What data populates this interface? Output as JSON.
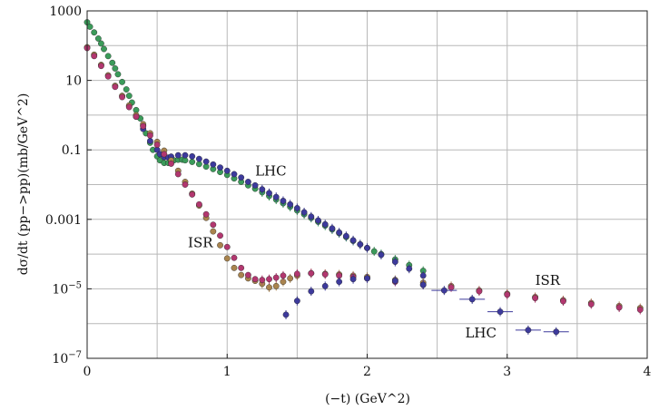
{
  "chart_data": {
    "type": "scatter",
    "title": "",
    "xlabel": "(−t)  (GeV^2)",
    "ylabel": "dσ/dt (pp−>pp)(mb/GeV^2)",
    "xlim": [
      0,
      4
    ],
    "ylim": [
      1e-07,
      1000
    ],
    "yscale": "log",
    "grid": true,
    "x_ticks": [
      {
        "value": 0,
        "label": "0"
      },
      {
        "value": 1,
        "label": "1"
      },
      {
        "value": 2,
        "label": "2"
      },
      {
        "value": 3,
        "label": "3"
      },
      {
        "value": 4,
        "label": "4"
      }
    ],
    "x_gridlines": [
      0.5,
      1,
      1.5,
      2,
      2.5,
      3,
      3.5
    ],
    "y_ticks": [
      {
        "value": 1e-07,
        "label": "10",
        "exp": "−7"
      },
      {
        "value": 1e-05,
        "label": "10",
        "exp": "−5"
      },
      {
        "value": 0.001,
        "label": "0.001"
      },
      {
        "value": 0.1,
        "label": "0.1"
      },
      {
        "value": 10,
        "label": "10"
      },
      {
        "value": 1000,
        "label": "1000"
      }
    ],
    "y_gridlines": [
      1e-07,
      1e-06,
      1e-05,
      0.0001,
      0.001,
      0.01,
      0.1,
      1,
      10,
      100,
      1000
    ],
    "annotations": [
      {
        "text": "LHC",
        "x": 1.2,
        "y": 0.018
      },
      {
        "text": "ISR",
        "x": 0.72,
        "y": 0.00016
      },
      {
        "text": "ISR",
        "x": 3.2,
        "y": 1.3e-05
      },
      {
        "text": "LHC",
        "x": 2.7,
        "y": 4e-07
      }
    ],
    "series": [
      {
        "color": "#3b9b5a",
        "x": [
          0.0,
          0.02,
          0.05,
          0.08,
          0.1,
          0.12,
          0.15,
          0.18,
          0.2,
          0.22,
          0.25,
          0.28,
          0.3,
          0.32,
          0.35,
          0.38,
          0.4,
          0.42,
          0.45,
          0.47,
          0.5,
          0.52,
          0.55,
          0.58,
          0.6,
          0.62,
          0.65,
          0.68,
          0.7,
          0.75,
          0.8,
          0.85,
          0.9,
          0.95,
          1.0,
          1.05,
          1.1,
          1.15,
          1.2,
          1.25,
          1.3,
          1.35,
          1.4,
          1.45,
          1.5,
          1.55,
          1.6,
          1.65,
          1.7,
          1.75,
          1.8,
          1.85,
          1.9,
          1.95,
          2.0,
          2.05,
          2.1,
          2.2,
          2.3,
          2.4
        ],
        "y": [
          470,
          350,
          240,
          160,
          115,
          80,
          50,
          32,
          22,
          15,
          9,
          5.5,
          3.6,
          2.3,
          1.4,
          0.8,
          0.5,
          0.3,
          0.16,
          0.1,
          0.065,
          0.05,
          0.042,
          0.042,
          0.046,
          0.05,
          0.052,
          0.052,
          0.05,
          0.045,
          0.039,
          0.033,
          0.028,
          0.023,
          0.019,
          0.015,
          0.012,
          0.0095,
          0.0076,
          0.006,
          0.0047,
          0.0037,
          0.0029,
          0.0023,
          0.0018,
          0.0014,
          0.0011,
          0.00085,
          0.00066,
          0.00051,
          0.0004,
          0.00031,
          0.00024,
          0.00019,
          0.00015,
          0.00012,
          0.0001,
          7e-05,
          4.8e-05,
          3.3e-05
        ]
      },
      {
        "color": "#3d3a9c",
        "x": [
          0.3,
          0.35,
          0.4,
          0.45,
          0.5,
          0.52,
          0.55,
          0.58,
          0.6,
          0.65,
          0.7,
          0.75,
          0.8,
          0.85,
          0.9,
          0.95,
          1.0,
          1.05,
          1.1,
          1.15,
          1.2,
          1.25,
          1.3,
          1.35,
          1.4,
          1.45,
          1.5,
          1.55,
          1.6,
          1.65,
          1.7,
          1.75,
          1.8,
          1.85,
          1.9,
          1.95,
          2.0,
          2.1,
          2.2,
          2.3,
          2.4
        ],
        "y": [
          1.8,
          0.9,
          0.4,
          0.18,
          0.1,
          0.075,
          0.062,
          0.06,
          0.064,
          0.07,
          0.07,
          0.065,
          0.055,
          0.046,
          0.038,
          0.031,
          0.025,
          0.02,
          0.016,
          0.012,
          0.0095,
          0.0073,
          0.0057,
          0.0044,
          0.0034,
          0.0027,
          0.0021,
          0.0016,
          0.0012,
          0.00093,
          0.00072,
          0.00055,
          0.00042,
          0.00033,
          0.00025,
          0.00019,
          0.00015,
          9.5e-05,
          6e-05,
          3.8e-05,
          2.4e-05
        ]
      },
      {
        "color": "#a9844e",
        "x": [
          0.0,
          0.05,
          0.1,
          0.15,
          0.2,
          0.25,
          0.3,
          0.35,
          0.4,
          0.45,
          0.5,
          0.55,
          0.6,
          0.65,
          0.7,
          0.75,
          0.8,
          0.85,
          0.9,
          0.95,
          1.0,
          1.05,
          1.1,
          1.15,
          1.2,
          1.25,
          1.3,
          1.35,
          1.4,
          1.45,
          1.5,
          1.6,
          1.7,
          1.8,
          1.9,
          2.0,
          2.2,
          2.4,
          2.6,
          2.8,
          3.0,
          3.2,
          3.4,
          3.6,
          3.8,
          3.95
        ],
        "y": [
          90,
          55,
          28,
          14,
          7,
          3.6,
          1.9,
          1.0,
          0.55,
          0.3,
          0.17,
          0.095,
          0.05,
          0.025,
          0.012,
          0.0055,
          0.0025,
          0.0011,
          0.00045,
          0.00018,
          7.5e-05,
          4e-05,
          2.5e-05,
          2e-05,
          1.7e-05,
          1.4e-05,
          1.1e-05,
          1.2e-05,
          1.6e-05,
          2e-05,
          2.4e-05,
          2.8e-05,
          2.7e-05,
          2.6e-05,
          2.4e-05,
          2.2e-05,
          1.8e-05,
          1.5e-05,
          1.2e-05,
          9e-06,
          7.2e-06,
          5.8e-06,
          4.7e-06,
          3.9e-06,
          3.2e-06,
          2.8e-06
        ]
      },
      {
        "color": "#b2376f",
        "x": [
          0.0,
          0.05,
          0.1,
          0.15,
          0.2,
          0.25,
          0.3,
          0.35,
          0.4,
          0.45,
          0.5,
          0.55,
          0.6,
          0.65,
          0.7,
          0.75,
          0.8,
          0.85,
          0.9,
          0.95,
          1.0,
          1.05,
          1.1,
          1.15,
          1.2,
          1.25,
          1.3,
          1.35,
          1.4,
          1.5,
          1.6,
          1.7,
          1.8,
          1.9,
          2.0,
          2.2,
          2.4,
          2.6,
          2.8,
          3.0,
          3.2,
          3.4,
          3.6,
          3.8,
          3.95
        ],
        "y": [
          85,
          50,
          26,
          13,
          6.5,
          3.3,
          1.7,
          0.9,
          0.48,
          0.26,
          0.14,
          0.075,
          0.04,
          0.02,
          0.01,
          0.0052,
          0.0027,
          0.0014,
          0.0007,
          0.00034,
          0.00016,
          7.8e-05,
          4e-05,
          2.5e-05,
          1.9e-05,
          1.8e-05,
          1.9e-05,
          2.1e-05,
          2.4e-05,
          2.7e-05,
          2.8e-05,
          2.6e-05,
          2.4e-05,
          2.2e-05,
          2e-05,
          1.6e-05,
          1.3e-05,
          1.1e-05,
          8.5e-06,
          6.8e-06,
          5.4e-06,
          4.4e-06,
          3.6e-06,
          2.9e-06,
          2.5e-06
        ]
      },
      {
        "color": "#3d3a9c",
        "x": [
          1.42,
          1.5,
          1.6,
          1.7,
          1.8,
          1.9,
          2.0,
          2.2,
          2.4,
          2.55,
          2.75,
          2.95,
          3.15,
          3.35
        ],
        "y": [
          1.8e-06,
          4.5e-06,
          8.5e-06,
          1.2e-05,
          1.6e-05,
          1.9e-05,
          2e-05,
          1.7e-05,
          1.3e-05,
          9e-06,
          5e-06,
          2.2e-06,
          6.5e-07,
          5.8e-07
        ]
      }
    ]
  }
}
